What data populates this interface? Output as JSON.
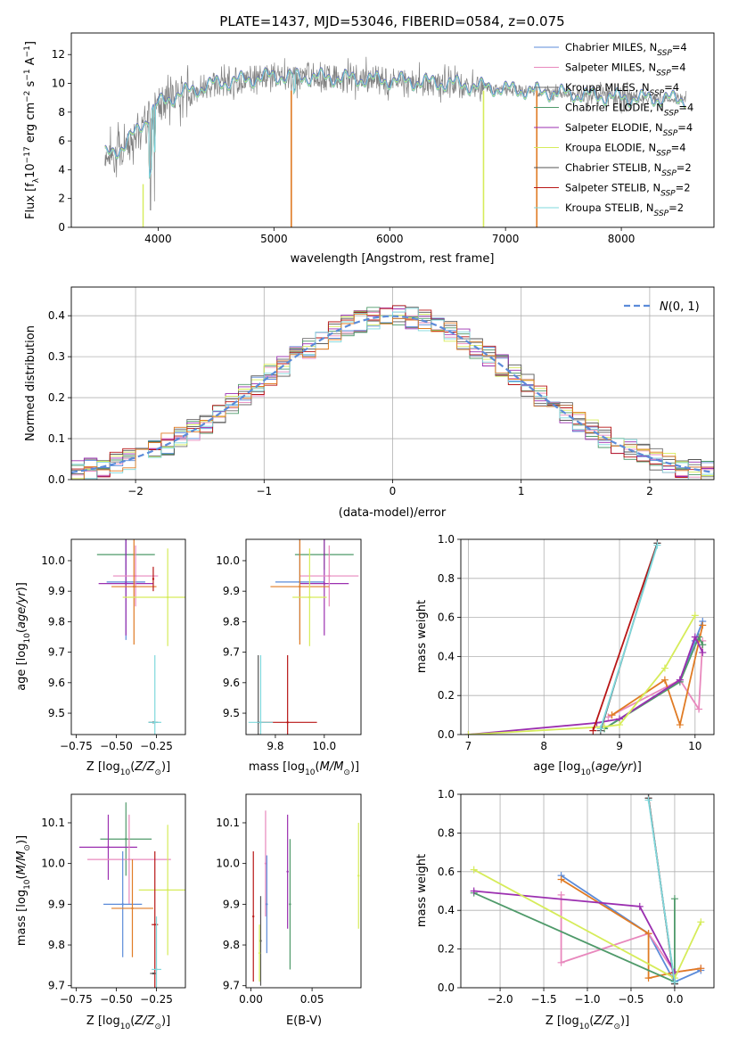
{
  "figure": {
    "title": "PLATE=1437, MJD=53046, FIBERID=0584, z=0.075"
  },
  "colors": {
    "Chabrier MILES": "#5b8bd9",
    "Salpeter MILES": "#e888bd",
    "Kroupa MILES": "#6c6c6c",
    "Chabrier ELODIE": "#4f9a6a",
    "Salpeter ELODIE": "#9b2fb0",
    "Kroupa ELODIE": "#d6ec5a",
    "Chabrier STELIB": "#555555",
    "Salpeter STELIB": "#b81616",
    "Kroupa STELIB": "#7fd8dc",
    "orange": "#e07b24",
    "gray": "#808080"
  },
  "chart_data": [
    {
      "id": "spectrum",
      "type": "line",
      "xlabel": "wavelength [Angstrom, rest frame]",
      "ylabel": "Flux [f_λ10^-17 erg cm^-2 s^-1 A^-1]",
      "xlim": [
        3250,
        8800
      ],
      "ylim": [
        0,
        13.5
      ],
      "xticks": [
        4000,
        5000,
        6000,
        7000,
        8000
      ],
      "yticks": [
        0,
        2,
        4,
        6,
        8,
        10,
        12
      ],
      "legend": [
        {
          "name": "Chabrier MILES",
          "label": "Chabrier MILES, N",
          "sub": "SSP",
          "tail": "=4"
        },
        {
          "name": "Salpeter MILES",
          "label": "Salpeter MILES, N",
          "sub": "SSP",
          "tail": "=4"
        },
        {
          "name": "Kroupa MILES",
          "label": "Kroupa MILES, N",
          "sub": "SSP",
          "tail": "=4"
        },
        {
          "name": "Chabrier ELODIE",
          "label": "Chabrier ELODIE, N",
          "sub": "SSP",
          "tail": "=4"
        },
        {
          "name": "Salpeter ELODIE",
          "label": "Salpeter ELODIE, N",
          "sub": "SSP",
          "tail": "=4"
        },
        {
          "name": "Kroupa ELODIE",
          "label": "Kroupa ELODIE, N",
          "sub": "SSP",
          "tail": "=4"
        },
        {
          "name": "Chabrier STELIB",
          "label": "Chabrier STELIB, N",
          "sub": "SSP",
          "tail": "=2"
        },
        {
          "name": "Salpeter STELIB",
          "label": "Salpeter STELIB, N",
          "sub": "SSP",
          "tail": "=2"
        },
        {
          "name": "Kroupa STELIB",
          "label": "Kroupa STELIB, N",
          "sub": "SSP",
          "tail": "=2"
        }
      ],
      "continuum": [
        [
          3540,
          5.0
        ],
        [
          3700,
          5.6
        ],
        [
          3900,
          7.5
        ],
        [
          4000,
          8.6
        ],
        [
          4200,
          9.3
        ],
        [
          4500,
          10.0
        ],
        [
          5000,
          10.5
        ],
        [
          5500,
          10.4
        ],
        [
          6000,
          10.2
        ],
        [
          6500,
          10.0
        ],
        [
          7000,
          9.6
        ],
        [
          7500,
          9.3
        ],
        [
          8000,
          9.0
        ],
        [
          8500,
          8.9
        ]
      ]
    },
    {
      "id": "residuals",
      "type": "line",
      "xlabel": "(data-model)/error",
      "ylabel": "Normed distribution",
      "xlim": [
        -2.5,
        2.5
      ],
      "ylim": [
        0,
        0.47
      ],
      "xticks": [
        -2,
        -1,
        0,
        1,
        2
      ],
      "yticks": [
        0.0,
        0.1,
        0.2,
        0.3,
        0.4
      ],
      "grid": true,
      "legend": [
        "N(0,1)"
      ],
      "bin_width": 0.1,
      "reference": "gaussian mean 0 sigma 1"
    },
    {
      "id": "age_vs_Z",
      "type": "scatter",
      "xlabel": "Z [log10(Z/Z⊙)]",
      "ylabel": "age  [log10(age/yr)]",
      "xlim": [
        -0.78,
        -0.07
      ],
      "ylim": [
        9.43,
        10.07
      ],
      "xticks": [
        -0.75,
        -0.5,
        -0.25
      ],
      "yticks": [
        9.5,
        9.6,
        9.7,
        9.8,
        9.9,
        10.0
      ],
      "points": [
        {
          "series": "Chabrier ELODIE",
          "x": -0.44,
          "y": 10.02,
          "xerr": 0.18,
          "yerr": 0.05
        },
        {
          "series": "Chabrier MILES",
          "x": -0.44,
          "y": 9.93,
          "xerr": 0.12,
          "yerr": 0.19
        },
        {
          "series": "Salpeter ELODIE",
          "x": -0.44,
          "y": 9.925,
          "xerr": 0.17,
          "yerr": 0.17
        },
        {
          "series": "Salpeter MILES",
          "x": -0.38,
          "y": 9.95,
          "xerr": 0.14,
          "yerr": 0.1
        },
        {
          "series": "orange",
          "x": -0.39,
          "y": 9.915,
          "xerr": 0.14,
          "yerr": 0.19
        },
        {
          "series": "Kroupa ELODIE",
          "x": -0.18,
          "y": 9.88,
          "xerr": 0.28,
          "yerr": 0.16
        },
        {
          "series": "Salpeter STELIB",
          "x": -0.27,
          "y": 9.94,
          "xerr": 0.0,
          "yerr": 0.04
        },
        {
          "series": "Chabrier STELIB",
          "x": -0.27,
          "y": 9.47,
          "xerr": 0.03,
          "yerr": 0.0
        },
        {
          "series": "Kroupa STELIB",
          "x": -0.26,
          "y": 9.47,
          "xerr": 0.04,
          "yerr": 0.22
        }
      ]
    },
    {
      "id": "age_vs_mass",
      "type": "scatter",
      "xlabel": "mass [log10(M/M⊙)]",
      "ylabel": "",
      "xlim": [
        9.68,
        10.15
      ],
      "ylim": [
        9.43,
        10.07
      ],
      "xticks": [
        9.8,
        10.0
      ],
      "yticks": [
        9.5,
        9.6,
        9.7,
        9.8,
        9.9,
        10.0
      ],
      "points": [
        {
          "series": "Chabrier ELODIE",
          "x": 10.0,
          "y": 10.02,
          "xerr": 0.12,
          "yerr": 0.05
        },
        {
          "series": "Chabrier MILES",
          "x": 9.9,
          "y": 9.93,
          "xerr": 0.1,
          "yerr": 0.19
        },
        {
          "series": "Salpeter ELODIE",
          "x": 10.0,
          "y": 9.925,
          "xerr": 0.1,
          "yerr": 0.17
        },
        {
          "series": "Salpeter MILES",
          "x": 10.02,
          "y": 9.95,
          "xerr": 0.12,
          "yerr": 0.1
        },
        {
          "series": "orange",
          "x": 9.9,
          "y": 9.915,
          "xerr": 0.12,
          "yerr": 0.19
        },
        {
          "series": "Kroupa ELODIE",
          "x": 9.94,
          "y": 9.88,
          "xerr": 0.07,
          "yerr": 0.16
        },
        {
          "series": "Salpeter STELIB",
          "x": 9.85,
          "y": 9.47,
          "xerr": 0.12,
          "yerr": 0.22
        },
        {
          "series": "Chabrier STELIB",
          "x": 9.73,
          "y": 9.47,
          "xerr": 0.0,
          "yerr": 0.22
        },
        {
          "series": "Kroupa STELIB",
          "x": 9.74,
          "y": 9.47,
          "xerr": 0.05,
          "yerr": 0.22
        }
      ]
    },
    {
      "id": "weight_vs_age",
      "type": "line",
      "xlabel": "age  [log10(age/yr)]",
      "ylabel": "mass weight",
      "xlim": [
        6.9,
        10.25
      ],
      "ylim": [
        0,
        1
      ],
      "xticks": [
        7,
        8,
        9,
        10
      ],
      "yticks": [
        0.0,
        0.2,
        0.4,
        0.6,
        0.8,
        1.0
      ],
      "grid": true,
      "series": [
        {
          "name": "Chabrier MILES",
          "x": [
            8.8,
            9.8,
            10.0,
            10.1
          ],
          "y": [
            0.03,
            0.28,
            0.48,
            0.58
          ]
        },
        {
          "name": "Salpeter MILES",
          "x": [
            8.85,
            9.8,
            10.05,
            10.1
          ],
          "y": [
            0.09,
            0.28,
            0.13,
            0.48
          ]
        },
        {
          "name": "orange",
          "x": [
            8.9,
            9.6,
            9.8,
            10.1
          ],
          "y": [
            0.1,
            0.28,
            0.05,
            0.56
          ]
        },
        {
          "name": "Chabrier ELODIE",
          "x": [
            8.8,
            9.8,
            10.05,
            10.1
          ],
          "y": [
            0.03,
            0.27,
            0.5,
            0.46
          ]
        },
        {
          "name": "Salpeter ELODIE",
          "x": [
            7.0,
            8.7,
            9.0,
            9.8,
            10.0,
            10.1
          ],
          "y": [
            0.0,
            0.06,
            0.08,
            0.28,
            0.5,
            0.42
          ]
        },
        {
          "name": "Kroupa ELODIE",
          "x": [
            7.0,
            8.8,
            9.0,
            9.6,
            10.0
          ],
          "y": [
            0.0,
            0.04,
            0.05,
            0.34,
            0.61
          ]
        },
        {
          "name": "Salpeter STELIB",
          "x": [
            8.65,
            9.5
          ],
          "y": [
            0.02,
            0.98
          ]
        },
        {
          "name": "Chabrier STELIB",
          "x": [
            8.75,
            9.5
          ],
          "y": [
            0.02,
            0.98
          ]
        },
        {
          "name": "Kroupa STELIB",
          "x": [
            8.75,
            9.5
          ],
          "y": [
            0.03,
            0.97
          ]
        }
      ]
    },
    {
      "id": "mass_vs_Z",
      "type": "scatter",
      "xlabel": "Z [log10(Z/Z⊙)]",
      "ylabel": "mass [log10(M/M⊙)]",
      "xlim": [
        -0.78,
        -0.07
      ],
      "ylim": [
        9.695,
        10.17
      ],
      "xticks": [
        -0.75,
        -0.5,
        -0.25
      ],
      "yticks": [
        9.7,
        9.8,
        9.9,
        10.0,
        10.1
      ],
      "points": [
        {
          "series": "Chabrier ELODIE",
          "x": -0.44,
          "y": 10.06,
          "xerr": 0.16,
          "yerr": 0.09
        },
        {
          "series": "Salpeter ELODIE",
          "x": -0.55,
          "y": 10.04,
          "xerr": 0.18,
          "yerr": 0.08
        },
        {
          "series": "Salpeter MILES",
          "x": -0.42,
          "y": 10.01,
          "xerr": 0.26,
          "yerr": 0.11
        },
        {
          "series": "Chabrier MILES",
          "x": -0.46,
          "y": 9.9,
          "xerr": 0.12,
          "yerr": 0.13
        },
        {
          "series": "orange",
          "x": -0.4,
          "y": 9.89,
          "xerr": 0.13,
          "yerr": 0.12
        },
        {
          "series": "Kroupa ELODIE",
          "x": -0.18,
          "y": 9.935,
          "xerr": 0.18,
          "yerr": 0.16
        },
        {
          "series": "Salpeter STELIB",
          "x": -0.26,
          "y": 9.85,
          "xerr": 0.02,
          "yerr": 0.18
        },
        {
          "series": "Chabrier STELIB",
          "x": -0.27,
          "y": 9.73,
          "xerr": 0.02,
          "yerr": 0.0
        },
        {
          "series": "Kroupa STELIB",
          "x": -0.25,
          "y": 9.74,
          "xerr": 0.03,
          "yerr": 0.13
        }
      ]
    },
    {
      "id": "mass_vs_ebv",
      "type": "scatter",
      "xlabel": "E(B-V)",
      "ylabel": "",
      "xlim": [
        -0.004,
        0.09
      ],
      "ylim": [
        9.695,
        10.17
      ],
      "xticks": [
        0.0,
        0.05
      ],
      "yticks": [
        9.7,
        9.8,
        9.9,
        10.0,
        10.1
      ],
      "points": [
        {
          "series": "Salpeter STELIB",
          "x": 0.002,
          "y": 9.87,
          "yerr": 0.16
        },
        {
          "series": "Chabrier STELIB",
          "x": 0.008,
          "y": 9.81,
          "yerr": 0.11
        },
        {
          "series": "Kroupa ELODIE",
          "x": 0.007,
          "y": 9.78,
          "yerr": 0.07
        },
        {
          "series": "Salpeter MILES",
          "x": 0.012,
          "y": 10.0,
          "yerr": 0.13
        },
        {
          "series": "Chabrier MILES",
          "x": 0.013,
          "y": 9.9,
          "yerr": 0.12
        },
        {
          "series": "Salpeter ELODIE",
          "x": 0.03,
          "y": 9.98,
          "yerr": 0.14
        },
        {
          "series": "Chabrier ELODIE",
          "x": 0.032,
          "y": 9.9,
          "yerr": 0.16
        },
        {
          "series": "Kroupa ELODIE",
          "x": 0.088,
          "y": 9.97,
          "yerr": 0.13
        }
      ]
    },
    {
      "id": "weight_vs_Z",
      "type": "line",
      "xlabel": "Z [log10(Z/Z⊙)]",
      "ylabel": "mass weight",
      "xlim": [
        -2.45,
        0.45
      ],
      "ylim": [
        0,
        1
      ],
      "xticks": [
        -2.0,
        -1.5,
        -1.0,
        -0.5,
        0.0
      ],
      "yticks": [
        0.0,
        0.2,
        0.4,
        0.6,
        0.8,
        1.0
      ],
      "grid": true,
      "series": [
        {
          "name": "Chabrier MILES",
          "x": [
            -1.3,
            -0.3,
            0.0,
            0.3
          ],
          "y": [
            0.58,
            0.28,
            0.03,
            0.09
          ]
        },
        {
          "name": "Salpeter MILES",
          "x": [
            -1.3,
            -1.3,
            -0.3,
            0.0,
            0.3
          ],
          "y": [
            0.48,
            0.13,
            0.28,
            0.08,
            0.1
          ]
        },
        {
          "name": "orange",
          "x": [
            -1.3,
            -0.3,
            -0.3,
            0.0,
            0.3
          ],
          "y": [
            0.56,
            0.28,
            0.05,
            0.08,
            0.1
          ]
        },
        {
          "name": "Chabrier ELODIE",
          "x": [
            -2.3,
            0.0,
            0.0
          ],
          "y": [
            0.49,
            0.03,
            0.46
          ]
        },
        {
          "name": "Salpeter ELODIE",
          "x": [
            -2.3,
            -0.4,
            0.0
          ],
          "y": [
            0.5,
            0.42,
            0.08
          ]
        },
        {
          "name": "Kroupa ELODIE",
          "x": [
            -2.3,
            0.0,
            0.3
          ],
          "y": [
            0.61,
            0.05,
            0.34
          ]
        },
        {
          "name": "Salpeter STELIB",
          "x": [
            -0.3,
            0.0
          ],
          "y": [
            0.98,
            0.02
          ]
        },
        {
          "name": "Chabrier STELIB",
          "x": [
            -0.3,
            0.0
          ],
          "y": [
            0.98,
            0.02
          ]
        },
        {
          "name": "Kroupa STELIB",
          "x": [
            -0.3,
            0.0
          ],
          "y": [
            0.97,
            0.03
          ]
        }
      ]
    }
  ]
}
